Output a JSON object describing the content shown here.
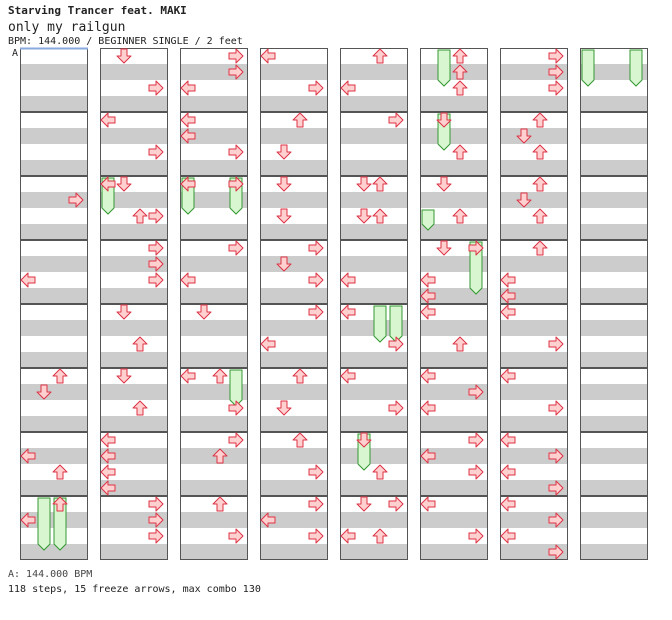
{
  "header": {
    "title": "Starving Trancer feat. MAKI",
    "song": "only my railgun",
    "info": "BPM: 144.000 / BEGINNER SINGLE / 2 feet",
    "bpm_marker": "A"
  },
  "footer": {
    "bpm_line": "A: 144.000 BPM",
    "stats_line": "118 steps, 15 freeze arrows, max combo 130"
  },
  "colors": {
    "stripe": "#cccccc",
    "arrow_fill": "#ffd0d0",
    "arrow_stroke": "#dd3344",
    "freeze_fill": "#d8f7d0",
    "freeze_stroke": "#339933",
    "bpm_line": "#88aadd"
  },
  "lanes": [
    "left",
    "down",
    "up",
    "right"
  ],
  "chart_data": {
    "type": "step-chart",
    "columns": 8,
    "measures_per_column": 8,
    "subdivisions_per_measure": 4,
    "notes": [
      {
        "m": 2,
        "b": 0.25,
        "l": "right"
      },
      {
        "m": 3,
        "b": 0.5,
        "l": "left"
      },
      {
        "m": 5,
        "b": 0,
        "l": "up"
      },
      {
        "m": 5,
        "b": 0.25,
        "l": "down"
      },
      {
        "m": 6,
        "b": 0.25,
        "l": "left"
      },
      {
        "m": 6,
        "b": 0.5,
        "l": "up"
      },
      {
        "m": 7,
        "b": 0,
        "l": "up"
      },
      {
        "m": 7,
        "b": 0.25,
        "l": "left"
      },
      {
        "m": 8,
        "b": 0,
        "l": "down"
      },
      {
        "m": 8,
        "b": 0.5,
        "l": "right"
      },
      {
        "m": 9,
        "b": 0,
        "l": "left"
      },
      {
        "m": 9,
        "b": 0.5,
        "l": "right"
      },
      {
        "m": 10,
        "b": 0,
        "l": "left"
      },
      {
        "m": 10,
        "b": 0,
        "l": "down"
      },
      {
        "m": 10,
        "b": 0.5,
        "l": "up"
      },
      {
        "m": 10,
        "b": 0.5,
        "l": "right"
      },
      {
        "m": 11,
        "b": 0,
        "l": "right"
      },
      {
        "m": 11,
        "b": 0.25,
        "l": "right"
      },
      {
        "m": 11,
        "b": 0.5,
        "l": "right"
      },
      {
        "m": 12,
        "b": 0,
        "l": "down"
      },
      {
        "m": 12,
        "b": 0.5,
        "l": "up"
      },
      {
        "m": 13,
        "b": 0,
        "l": "down"
      },
      {
        "m": 13,
        "b": 0.5,
        "l": "up"
      },
      {
        "m": 14,
        "b": 0,
        "l": "left"
      },
      {
        "m": 14,
        "b": 0.25,
        "l": "left"
      },
      {
        "m": 14,
        "b": 0.5,
        "l": "left"
      },
      {
        "m": 14,
        "b": 0.75,
        "l": "left"
      },
      {
        "m": 15,
        "b": 0,
        "l": "right"
      },
      {
        "m": 15,
        "b": 0.25,
        "l": "right"
      },
      {
        "m": 15,
        "b": 0.5,
        "l": "right"
      },
      {
        "m": 16,
        "b": 0,
        "l": "right"
      },
      {
        "m": 16,
        "b": 0.25,
        "l": "right"
      },
      {
        "m": 16,
        "b": 0.5,
        "l": "left"
      },
      {
        "m": 17,
        "b": 0,
        "l": "left"
      },
      {
        "m": 17,
        "b": 0.25,
        "l": "left"
      },
      {
        "m": 17,
        "b": 0.5,
        "l": "right"
      },
      {
        "m": 18,
        "b": 0,
        "l": "left"
      },
      {
        "m": 18,
        "b": 0,
        "l": "right"
      },
      {
        "m": 19,
        "b": 0,
        "l": "right"
      },
      {
        "m": 19,
        "b": 0.5,
        "l": "left"
      },
      {
        "m": 20,
        "b": 0,
        "l": "down"
      },
      {
        "m": 21,
        "b": 0,
        "l": "left"
      },
      {
        "m": 21,
        "b": 0,
        "l": "up"
      },
      {
        "m": 21,
        "b": 0.5,
        "l": "right"
      },
      {
        "m": 22,
        "b": 0,
        "l": "right"
      },
      {
        "m": 22,
        "b": 0.25,
        "l": "up"
      },
      {
        "m": 23,
        "b": 0,
        "l": "up"
      },
      {
        "m": 23,
        "b": 0.5,
        "l": "right"
      },
      {
        "m": 24,
        "b": 0,
        "l": "left"
      },
      {
        "m": 24,
        "b": 0.5,
        "l": "right"
      },
      {
        "m": 25,
        "b": 0,
        "l": "up"
      },
      {
        "m": 25,
        "b": 0.5,
        "l": "down"
      },
      {
        "m": 26,
        "b": 0,
        "l": "down"
      },
      {
        "m": 26,
        "b": 0.5,
        "l": "down"
      },
      {
        "m": 27,
        "b": 0,
        "l": "right"
      },
      {
        "m": 27,
        "b": 0.25,
        "l": "down"
      },
      {
        "m": 27,
        "b": 0.5,
        "l": "right"
      },
      {
        "m": 28,
        "b": 0,
        "l": "right"
      },
      {
        "m": 28,
        "b": 0.5,
        "l": "left"
      },
      {
        "m": 29,
        "b": 0,
        "l": "up"
      },
      {
        "m": 29,
        "b": 0.5,
        "l": "down"
      },
      {
        "m": 30,
        "b": 0,
        "l": "up"
      },
      {
        "m": 30,
        "b": 0.5,
        "l": "right"
      },
      {
        "m": 31,
        "b": 0,
        "l": "right"
      },
      {
        "m": 31,
        "b": 0.25,
        "l": "left"
      },
      {
        "m": 31,
        "b": 0.5,
        "l": "right"
      },
      {
        "m": 32,
        "b": 0,
        "l": "up"
      },
      {
        "m": 32,
        "b": 0.5,
        "l": "left"
      },
      {
        "m": 33,
        "b": 0,
        "l": "right"
      },
      {
        "m": 34,
        "b": 0,
        "l": "down"
      },
      {
        "m": 34,
        "b": 0,
        "l": "up"
      },
      {
        "m": 34,
        "b": 0.5,
        "l": "down"
      },
      {
        "m": 34,
        "b": 0.5,
        "l": "up"
      },
      {
        "m": 35,
        "b": 0.5,
        "l": "left"
      },
      {
        "m": 36,
        "b": 0,
        "l": "left"
      },
      {
        "m": 36,
        "b": 0.5,
        "l": "right"
      },
      {
        "m": 37,
        "b": 0,
        "l": "left"
      },
      {
        "m": 37,
        "b": 0.5,
        "l": "right"
      },
      {
        "m": 38,
        "b": 0,
        "l": "down"
      },
      {
        "m": 38,
        "b": 0.5,
        "l": "up"
      },
      {
        "m": 39,
        "b": 0,
        "l": "down"
      },
      {
        "m": 39,
        "b": 0,
        "l": "right"
      },
      {
        "m": 39,
        "b": 0.5,
        "l": "left"
      },
      {
        "m": 39,
        "b": 0.5,
        "l": "up"
      },
      {
        "m": 40,
        "b": 0,
        "l": "up"
      },
      {
        "m": 40,
        "b": 0.25,
        "l": "up"
      },
      {
        "m": 40,
        "b": 0.5,
        "l": "up"
      },
      {
        "m": 41,
        "b": 0,
        "l": "down"
      },
      {
        "m": 41,
        "b": 0.5,
        "l": "up"
      },
      {
        "m": 42,
        "b": 0,
        "l": "down"
      },
      {
        "m": 42,
        "b": 0.5,
        "l": "up"
      },
      {
        "m": 43,
        "b": 0,
        "l": "down"
      },
      {
        "m": 43,
        "b": 0,
        "l": "right"
      },
      {
        "m": 43,
        "b": 0.5,
        "l": "left"
      },
      {
        "m": 43,
        "b": 0.75,
        "l": "left"
      },
      {
        "m": 44,
        "b": 0,
        "l": "left"
      },
      {
        "m": 44,
        "b": 0.5,
        "l": "up"
      },
      {
        "m": 45,
        "b": 0,
        "l": "left"
      },
      {
        "m": 45,
        "b": 0.25,
        "l": "right"
      },
      {
        "m": 45,
        "b": 0.5,
        "l": "left"
      },
      {
        "m": 46,
        "b": 0,
        "l": "right"
      },
      {
        "m": 46,
        "b": 0.25,
        "l": "left"
      },
      {
        "m": 46,
        "b": 0.5,
        "l": "right"
      },
      {
        "m": 47,
        "b": 0,
        "l": "left"
      },
      {
        "m": 47,
        "b": 0.5,
        "l": "right"
      },
      {
        "m": 48,
        "b": 0,
        "l": "right"
      },
      {
        "m": 48,
        "b": 0.25,
        "l": "right"
      },
      {
        "m": 48,
        "b": 0.5,
        "l": "right"
      },
      {
        "m": 49,
        "b": 0,
        "l": "up"
      },
      {
        "m": 49,
        "b": 0.25,
        "l": "down"
      },
      {
        "m": 49,
        "b": 0.5,
        "l": "up"
      },
      {
        "m": 50,
        "b": 0,
        "l": "up"
      },
      {
        "m": 50,
        "b": 0.25,
        "l": "down"
      },
      {
        "m": 50,
        "b": 0.5,
        "l": "up"
      },
      {
        "m": 51,
        "b": 0,
        "l": "up"
      },
      {
        "m": 51,
        "b": 0.5,
        "l": "left"
      },
      {
        "m": 51,
        "b": 0.75,
        "l": "left"
      },
      {
        "m": 52,
        "b": 0,
        "l": "left"
      },
      {
        "m": 52,
        "b": 0.5,
        "l": "right"
      },
      {
        "m": 53,
        "b": 0,
        "l": "left"
      },
      {
        "m": 53,
        "b": 0.5,
        "l": "right"
      },
      {
        "m": 54,
        "b": 0,
        "l": "left"
      },
      {
        "m": 54,
        "b": 0.25,
        "l": "right"
      },
      {
        "m": 54,
        "b": 0.5,
        "l": "left"
      },
      {
        "m": 54,
        "b": 0.75,
        "l": "right"
      },
      {
        "m": 55,
        "b": 0,
        "l": "left"
      },
      {
        "m": 55,
        "b": 0.25,
        "l": "right"
      },
      {
        "m": 55,
        "b": 0.5,
        "l": "left"
      },
      {
        "m": 55,
        "b": 0.75,
        "l": "right"
      }
    ],
    "freezes": [
      {
        "m": 7,
        "b": 0,
        "l": "down",
        "len": 0.75
      },
      {
        "m": 7,
        "b": 0,
        "l": "up",
        "len": 0.75
      },
      {
        "m": 10,
        "b": 0,
        "l": "left",
        "len": 0.5
      },
      {
        "m": 18,
        "b": 0,
        "l": "left",
        "len": 0.5
      },
      {
        "m": 18,
        "b": 0,
        "l": "right",
        "len": 0.5
      },
      {
        "m": 21,
        "b": 0,
        "l": "right",
        "len": 0.5
      },
      {
        "m": 36,
        "b": 0,
        "l": "up",
        "len": 0.5
      },
      {
        "m": 36,
        "b": 0,
        "l": "right",
        "len": 0.5
      },
      {
        "m": 38,
        "b": 0,
        "l": "down",
        "len": 0.5
      },
      {
        "m": 40,
        "b": 0,
        "l": "down",
        "len": 0.5
      },
      {
        "m": 41,
        "b": 0,
        "l": "down",
        "len": 0.5
      },
      {
        "m": 42,
        "b": 0.5,
        "l": "left",
        "len": 0.25
      },
      {
        "m": 43,
        "b": 0,
        "l": "right",
        "len": 0.75
      },
      {
        "m": 56,
        "b": 0,
        "l": "left",
        "len": 0.5
      },
      {
        "m": 56,
        "b": 0,
        "l": "right",
        "len": 0.5
      }
    ]
  }
}
